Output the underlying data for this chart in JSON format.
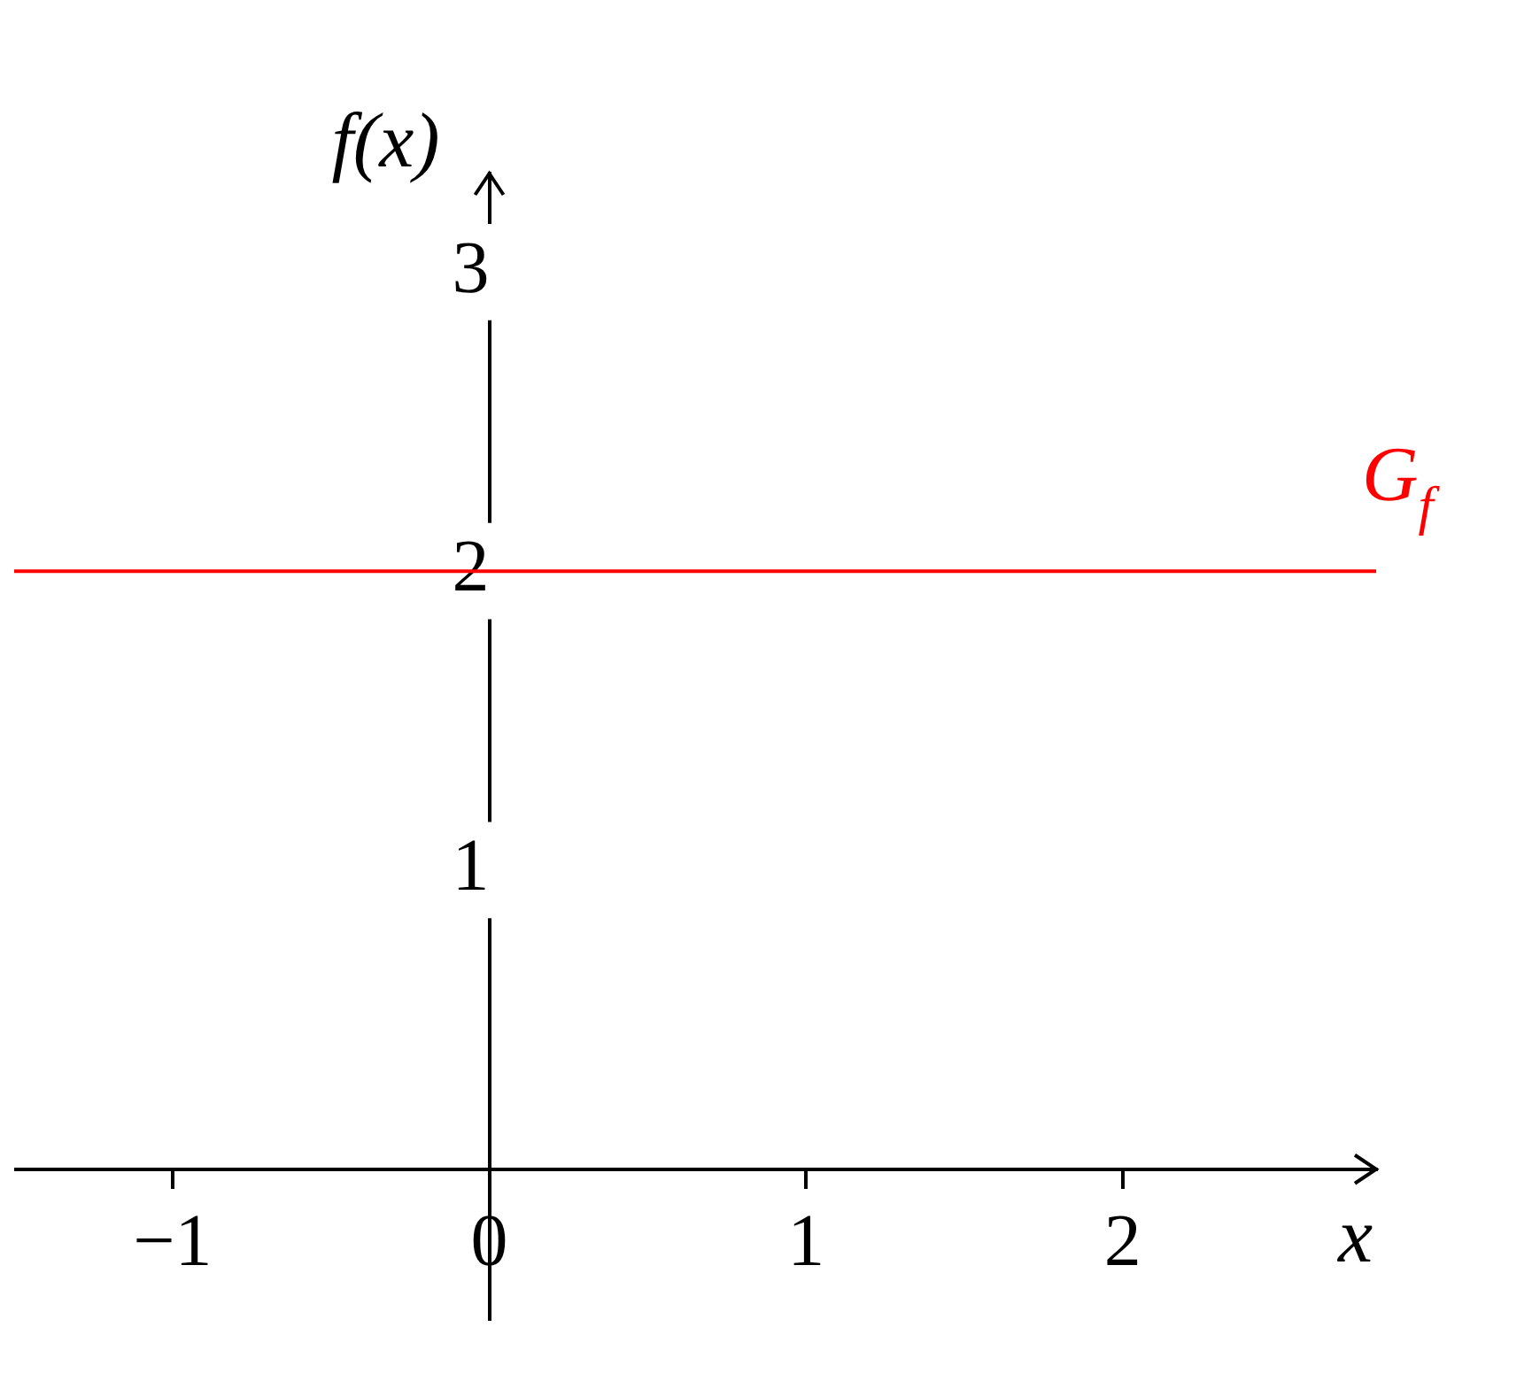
{
  "chart_data": {
    "type": "line",
    "xlabel": "x",
    "ylabel": "f(x)",
    "series": [
      {
        "name": "G$_{f}$",
        "color": "#ff0000",
        "x": [
          -1.5,
          2.8
        ],
        "values": [
          2,
          2
        ]
      }
    ],
    "xlim": [
      -1.5,
      2.8
    ],
    "ylim": [
      -0.5,
      3.33
    ],
    "xticks": [
      {
        "value": -1,
        "label": "−1"
      },
      0,
      1,
      2
    ],
    "yticks": [
      1,
      2,
      3
    ],
    "grid": false,
    "legend": false,
    "marker": "none",
    "line_style": "solid"
  }
}
